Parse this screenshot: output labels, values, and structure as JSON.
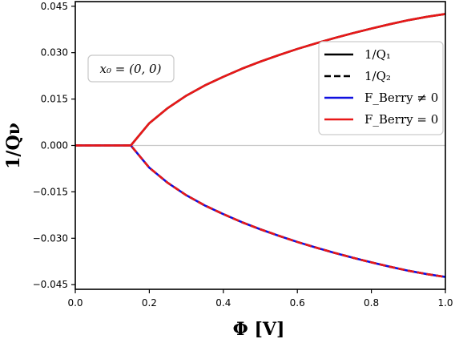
{
  "chart_data": {
    "type": "line",
    "xlabel": "Φ [V]",
    "ylabel": "1/Qν",
    "xlim": [
      0.0,
      1.0
    ],
    "ylim": [
      -0.0465,
      0.0465
    ],
    "x_ticks": [
      "0.0",
      "0.2",
      "0.4",
      "0.6",
      "0.8",
      "1.0"
    ],
    "x_tick_values": [
      0.0,
      0.2,
      0.4,
      0.6,
      0.8,
      1.0
    ],
    "y_ticks": [
      "0.045",
      "0.030",
      "0.015",
      "0.000",
      "−0.015",
      "−0.030",
      "−0.045"
    ],
    "y_tick_values": [
      0.045,
      0.03,
      0.015,
      0.0,
      -0.015,
      -0.03,
      -0.045
    ],
    "grid": false,
    "zero_line": true,
    "annotation": "x₀ = (0, 0)",
    "legend_position": "upper-right",
    "x": [
      0.0,
      0.05,
      0.1,
      0.15,
      0.2,
      0.25,
      0.3,
      0.35,
      0.4,
      0.45,
      0.5,
      0.55,
      0.6,
      0.65,
      0.7,
      0.75,
      0.8,
      0.85,
      0.9,
      0.95,
      1.0
    ],
    "series": [
      {
        "name": "1/Q₁",
        "color": "#000000",
        "dash": "solid",
        "values": [
          0.0,
          0.0,
          0.0,
          0.0,
          0.0072,
          0.0121,
          0.0161,
          0.0194,
          0.0222,
          0.0248,
          0.0271,
          0.0292,
          0.0312,
          0.033,
          0.0347,
          0.0363,
          0.0378,
          0.0392,
          0.0405,
          0.0416,
          0.0425
        ]
      },
      {
        "name": "1/Q₂",
        "color": "#000000",
        "dash": "dashed",
        "values": [
          0.0,
          0.0,
          0.0,
          0.0,
          -0.0072,
          -0.0121,
          -0.0161,
          -0.0194,
          -0.0222,
          -0.0248,
          -0.0271,
          -0.0292,
          -0.0312,
          -0.033,
          -0.0347,
          -0.0363,
          -0.0378,
          -0.0392,
          -0.0405,
          -0.0416,
          -0.0425
        ]
      },
      {
        "name": "F_Berry ≠ 0",
        "color": "#1010e0",
        "dash": "solid",
        "values": [
          0.0,
          0.0,
          0.0,
          0.0,
          -0.0072,
          -0.0121,
          -0.0161,
          -0.0194,
          -0.0222,
          -0.0248,
          -0.0271,
          -0.0292,
          -0.0312,
          -0.033,
          -0.0347,
          -0.0363,
          -0.0378,
          -0.0392,
          -0.0405,
          -0.0416,
          -0.0425
        ]
      },
      {
        "name": "F_Berry = 0",
        "color": "#e81818",
        "dash": "solid",
        "values": [
          0.0,
          0.0,
          0.0,
          0.0,
          0.0072,
          0.0121,
          0.0161,
          0.0194,
          0.0222,
          0.0248,
          0.0271,
          0.0292,
          0.0312,
          0.033,
          0.0347,
          0.0363,
          0.0378,
          0.0392,
          0.0405,
          0.0416,
          0.0425
        ]
      },
      {
        "name": "F_Berry = 0",
        "color": "#e81818",
        "dash": "dashed",
        "values": [
          0.0,
          0.0,
          0.0,
          0.0,
          -0.0072,
          -0.0121,
          -0.0161,
          -0.0194,
          -0.0222,
          -0.0248,
          -0.0271,
          -0.0292,
          -0.0312,
          -0.033,
          -0.0347,
          -0.0363,
          -0.0378,
          -0.0392,
          -0.0405,
          -0.0416,
          -0.0425
        ]
      }
    ],
    "legend": [
      {
        "label": "1/Q₁",
        "color": "#000000",
        "dash": "solid"
      },
      {
        "label": "1/Q₂",
        "color": "#000000",
        "dash": "dashed"
      },
      {
        "label": "F_Berry ≠ 0",
        "color": "#1010e0",
        "dash": "solid"
      },
      {
        "label": "F_Berry = 0",
        "color": "#e81818",
        "dash": "solid"
      }
    ]
  }
}
